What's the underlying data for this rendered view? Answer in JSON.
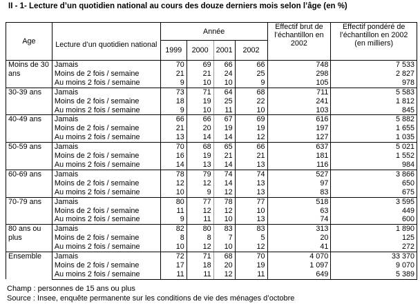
{
  "title": "II - 1- Lecture d’un quotidien national au cours des douze derniers mois selon l’âge (en %)",
  "headers": {
    "age": "Age",
    "lecture": "Lecture d’un quotidien national",
    "annee": "Année",
    "years": [
      "1999",
      "2000",
      "2001",
      "2002"
    ],
    "brut": "Effectif brut de l’échantillon en 2002",
    "pondere": "Effectif pondéré de l’échantillon en 2002",
    "pondere_unit": "(en milliers)"
  },
  "groups": [
    {
      "age": "Moins de 30 ans",
      "rows": [
        {
          "label": "Jamais",
          "v": [
            "70",
            "69",
            "66",
            "66"
          ],
          "brut": "748",
          "pond": "7 533"
        },
        {
          "label": "Moins de 2 fois / semaine",
          "v": [
            "21",
            "21",
            "24",
            "25"
          ],
          "brut": "298",
          "pond": "2 827"
        },
        {
          "label": "Au moins 2 fois / semaine",
          "v": [
            "9",
            "10",
            "10",
            "9"
          ],
          "brut": "105",
          "pond": "978"
        }
      ]
    },
    {
      "age": "30-39 ans",
      "rows": [
        {
          "label": "Jamais",
          "v": [
            "73",
            "71",
            "64",
            "68"
          ],
          "brut": "711",
          "pond": "5 583"
        },
        {
          "label": "Moins de 2 fois / semaine",
          "v": [
            "18",
            "19",
            "25",
            "22"
          ],
          "brut": "241",
          "pond": "1 812"
        },
        {
          "label": "Au moins 2 fois / semaine",
          "v": [
            "9",
            "10",
            "11",
            "10"
          ],
          "brut": "103",
          "pond": "845"
        }
      ]
    },
    {
      "age": "40-49 ans",
      "rows": [
        {
          "label": "Jamais",
          "v": [
            "66",
            "66",
            "67",
            "69"
          ],
          "brut": "616",
          "pond": "5 882"
        },
        {
          "label": "Moins de 2 fois / semaine",
          "v": [
            "21",
            "20",
            "19",
            "19"
          ],
          "brut": "197",
          "pond": "1 655"
        },
        {
          "label": "Au moins 2 fois / semaine",
          "v": [
            "13",
            "14",
            "14",
            "12"
          ],
          "brut": "127",
          "pond": "1 035"
        }
      ]
    },
    {
      "age": "50-59 ans",
      "rows": [
        {
          "label": "Jamais",
          "v": [
            "70",
            "68",
            "65",
            "66"
          ],
          "brut": "637",
          "pond": "5 021"
        },
        {
          "label": "Moins de 2 fois / semaine",
          "v": [
            "16",
            "19",
            "21",
            "21"
          ],
          "brut": "181",
          "pond": "1 552"
        },
        {
          "label": "Au moins 2 fois / semaine",
          "v": [
            "14",
            "13",
            "14",
            "13"
          ],
          "brut": "116",
          "pond": "984"
        }
      ]
    },
    {
      "age": "60-69 ans",
      "rows": [
        {
          "label": "Jamais",
          "v": [
            "78",
            "79",
            "74",
            "74"
          ],
          "brut": "527",
          "pond": "3 866"
        },
        {
          "label": "Moins de 2 fois / semaine",
          "v": [
            "12",
            "12",
            "14",
            "13"
          ],
          "brut": "97",
          "pond": "650"
        },
        {
          "label": "Au moins 2 fois / semaine",
          "v": [
            "10",
            "9",
            "12",
            "13"
          ],
          "brut": "83",
          "pond": "675"
        }
      ]
    },
    {
      "age": "70-79 ans",
      "rows": [
        {
          "label": "Jamais",
          "v": [
            "80",
            "77",
            "78",
            "77"
          ],
          "brut": "518",
          "pond": "3 595"
        },
        {
          "label": "Moins de 2 fois / semaine",
          "v": [
            "11",
            "12",
            "12",
            "10"
          ],
          "brut": "63",
          "pond": "449"
        },
        {
          "label": "Au moins 2 fois / semaine",
          "v": [
            "9",
            "11",
            "10",
            "13"
          ],
          "brut": "74",
          "pond": "600"
        }
      ]
    },
    {
      "age": "80 ans ou plus",
      "rows": [
        {
          "label": "Jamais",
          "v": [
            "82",
            "80",
            "83",
            "83"
          ],
          "brut": "313",
          "pond": "1 890"
        },
        {
          "label": "Moins de 2 fois / semaine",
          "v": [
            "8",
            "8",
            "7",
            "5"
          ],
          "brut": "20",
          "pond": "125"
        },
        {
          "label": "Au moins 2 fois / semaine",
          "v": [
            "10",
            "12",
            "10",
            "12"
          ],
          "brut": "41",
          "pond": "272"
        }
      ]
    },
    {
      "age": "Ensemble",
      "rows": [
        {
          "label": "Jamais",
          "v": [
            "72",
            "71",
            "68",
            "70"
          ],
          "brut": "4 070",
          "pond": "33 370"
        },
        {
          "label": "Moins de 2 fois / semaine",
          "v": [
            "17",
            "18",
            "20",
            "19"
          ],
          "brut": "1 097",
          "pond": "9 070"
        },
        {
          "label": "Au moins 2 fois / semaine",
          "v": [
            "11",
            "11",
            "12",
            "11"
          ],
          "brut": "649",
          "pond": "5 389"
        }
      ]
    }
  ],
  "footer": {
    "champ": "Champ : personnes de 15 ans ou plus",
    "source": "Source : Insee, enquête permanente sur les conditions de vie des ménages d’octobre"
  }
}
